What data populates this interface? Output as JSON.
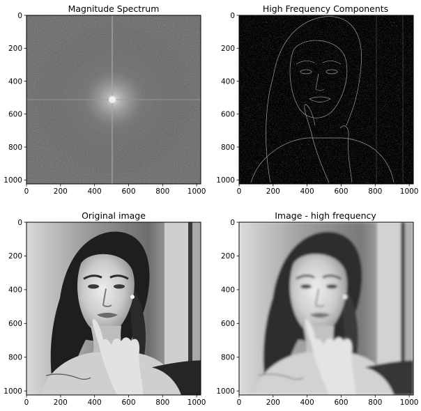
{
  "chart_data": [
    {
      "type": "image",
      "title": "Magnitude Spectrum",
      "xlim": [
        0,
        1024
      ],
      "ylim": [
        0,
        1024
      ],
      "xticks": [
        0,
        200,
        400,
        600,
        800,
        1000
      ],
      "yticks": [
        0,
        200,
        400,
        600,
        800,
        1000
      ],
      "colormap": "gray",
      "content": "magnitude-spectrum"
    },
    {
      "type": "image",
      "title": "High Frequency Components",
      "xlim": [
        0,
        1024
      ],
      "ylim": [
        0,
        1024
      ],
      "xticks": [
        0,
        200,
        400,
        600,
        800,
        1000
      ],
      "yticks": [
        0,
        200,
        400,
        600,
        800,
        1000
      ],
      "colormap": "gray",
      "content": "edges"
    },
    {
      "type": "image",
      "title": "Original image",
      "xlim": [
        0,
        1024
      ],
      "ylim": [
        0,
        1024
      ],
      "xticks": [
        0,
        200,
        400,
        600,
        800,
        1000
      ],
      "yticks": [
        0,
        200,
        400,
        600,
        800,
        1000
      ],
      "colormap": "gray",
      "content": "portrait"
    },
    {
      "type": "image",
      "title": "Image - high frequency",
      "xlim": [
        0,
        1024
      ],
      "ylim": [
        0,
        1024
      ],
      "xticks": [
        0,
        200,
        400,
        600,
        800,
        1000
      ],
      "yticks": [
        0,
        200,
        400,
        600,
        800,
        1000
      ],
      "colormap": "gray",
      "content": "portrait-smoothed"
    }
  ]
}
